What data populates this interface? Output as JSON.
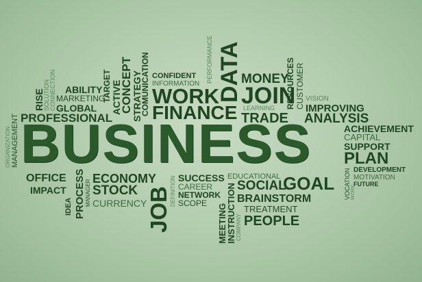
{
  "words": {
    "business": "BUSINESS",
    "work": "WORK",
    "join": "JOIN",
    "finance": "FINANCE",
    "data": "DATA",
    "money": "MONEY",
    "trade": "TRADE",
    "analysis": "ANALYSIS",
    "improving": "IMPROVING",
    "vision": "VISION",
    "learning": "LEARNING",
    "resources": "RESOURCES",
    "customer": "CUSTOMER",
    "confident": "CONFIDENT",
    "information": "INFORMATION",
    "performance": "PERFORMANCE",
    "comunication": "COMUNICATION",
    "strategy": "STRATEGY",
    "concept": "CONCEPT",
    "active": "ACTIVE",
    "target": "TARGET",
    "ability": "ABILITY",
    "marketing": "MARKETING",
    "global": "GLOBAL",
    "professional": "PROFESSIONAL",
    "rise": "RISE",
    "solution": "SOLUTION",
    "connection": "CONNECTION",
    "organization": "ORGANIZATION",
    "management": "MANAGEMENT",
    "achievement": "ACHIEVEMENT",
    "capital": "CAPITAL",
    "support": "SUPPORT",
    "plan": "PLAN",
    "development": "DEVELOPMENT",
    "motivation": "MOTIVATION",
    "future": "FUTURE",
    "vocation": "VOCATION",
    "work_small": "WORK",
    "office": "OFFICE",
    "economy": "ECONOMY",
    "impact": "IMPACT",
    "stock": "STOCK",
    "currency": "CURRENCY",
    "manager": "MANAGER",
    "process": "PROCESS",
    "idea": "IDEA",
    "job": "JOB",
    "definition": "DEFINITION",
    "success": "SUCCESS",
    "career": "CAREER",
    "network": "NETWORK",
    "scope": "SCOPE",
    "educational": "EDUCATIONAL",
    "social": "SOCIAL",
    "goal": "GOAL",
    "brainstorm": "BRAINSTORM",
    "treatment": "TREATMENT",
    "people": "PEOPLE",
    "meeting": "MEETING",
    "instruction": "INSTRUCTION",
    "company": "COMPANY"
  },
  "colors": {
    "background": "#b3cdaf",
    "text_dark": "#1f4521",
    "text_mid": "#3d6a3f",
    "text_light": "#5b865b"
  }
}
